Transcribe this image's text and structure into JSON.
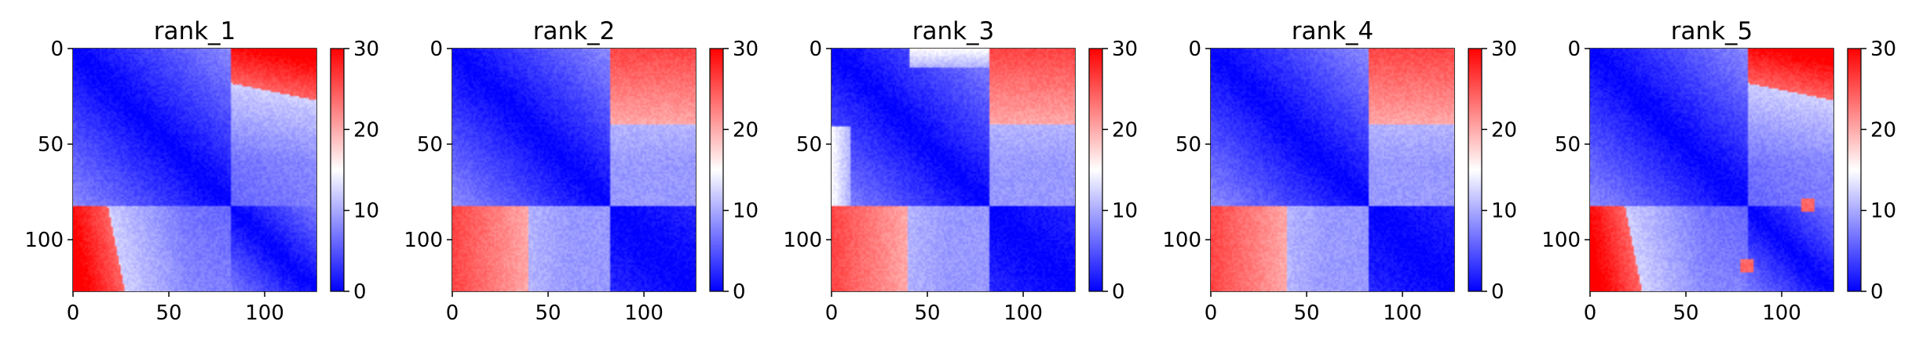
{
  "chart_data": [
    {
      "type": "heatmap",
      "title": "rank_1",
      "xticks": [
        0,
        50,
        100
      ],
      "yticks": [
        0,
        50,
        100
      ],
      "xlim": [
        0,
        127
      ],
      "ylim": [
        127,
        0
      ],
      "colorbar": {
        "ticks": [
          0,
          10,
          20,
          30
        ],
        "range": [
          0,
          30
        ],
        "colormap": "bwr"
      },
      "variant": 0
    },
    {
      "type": "heatmap",
      "title": "rank_2",
      "xticks": [
        0,
        50,
        100
      ],
      "yticks": [
        0,
        50,
        100
      ],
      "xlim": [
        0,
        127
      ],
      "ylim": [
        127,
        0
      ],
      "colorbar": {
        "ticks": [
          0,
          10,
          20,
          30
        ],
        "range": [
          0,
          30
        ],
        "colormap": "bwr"
      },
      "variant": 1
    },
    {
      "type": "heatmap",
      "title": "rank_3",
      "xticks": [
        0,
        50,
        100
      ],
      "yticks": [
        0,
        50,
        100
      ],
      "xlim": [
        0,
        127
      ],
      "ylim": [
        127,
        0
      ],
      "colorbar": {
        "ticks": [
          0,
          10,
          20,
          30
        ],
        "range": [
          0,
          30
        ],
        "colormap": "bwr"
      },
      "variant": 2
    },
    {
      "type": "heatmap",
      "title": "rank_4",
      "xticks": [
        0,
        50,
        100
      ],
      "yticks": [
        0,
        50,
        100
      ],
      "xlim": [
        0,
        127
      ],
      "ylim": [
        127,
        0
      ],
      "colorbar": {
        "ticks": [
          0,
          10,
          20,
          30
        ],
        "range": [
          0,
          30
        ],
        "colormap": "bwr"
      },
      "variant": 3
    },
    {
      "type": "heatmap",
      "title": "rank_5",
      "xticks": [
        0,
        50,
        100
      ],
      "yticks": [
        0,
        50,
        100
      ],
      "xlim": [
        0,
        127
      ],
      "ylim": [
        127,
        0
      ],
      "colorbar": {
        "ticks": [
          0,
          10,
          20,
          30
        ],
        "range": [
          0,
          30
        ],
        "colormap": "bwr"
      },
      "variant": 4
    }
  ],
  "colors": {
    "low": "#0000ff",
    "mid": "#ffffff",
    "high": "#ff0000"
  }
}
